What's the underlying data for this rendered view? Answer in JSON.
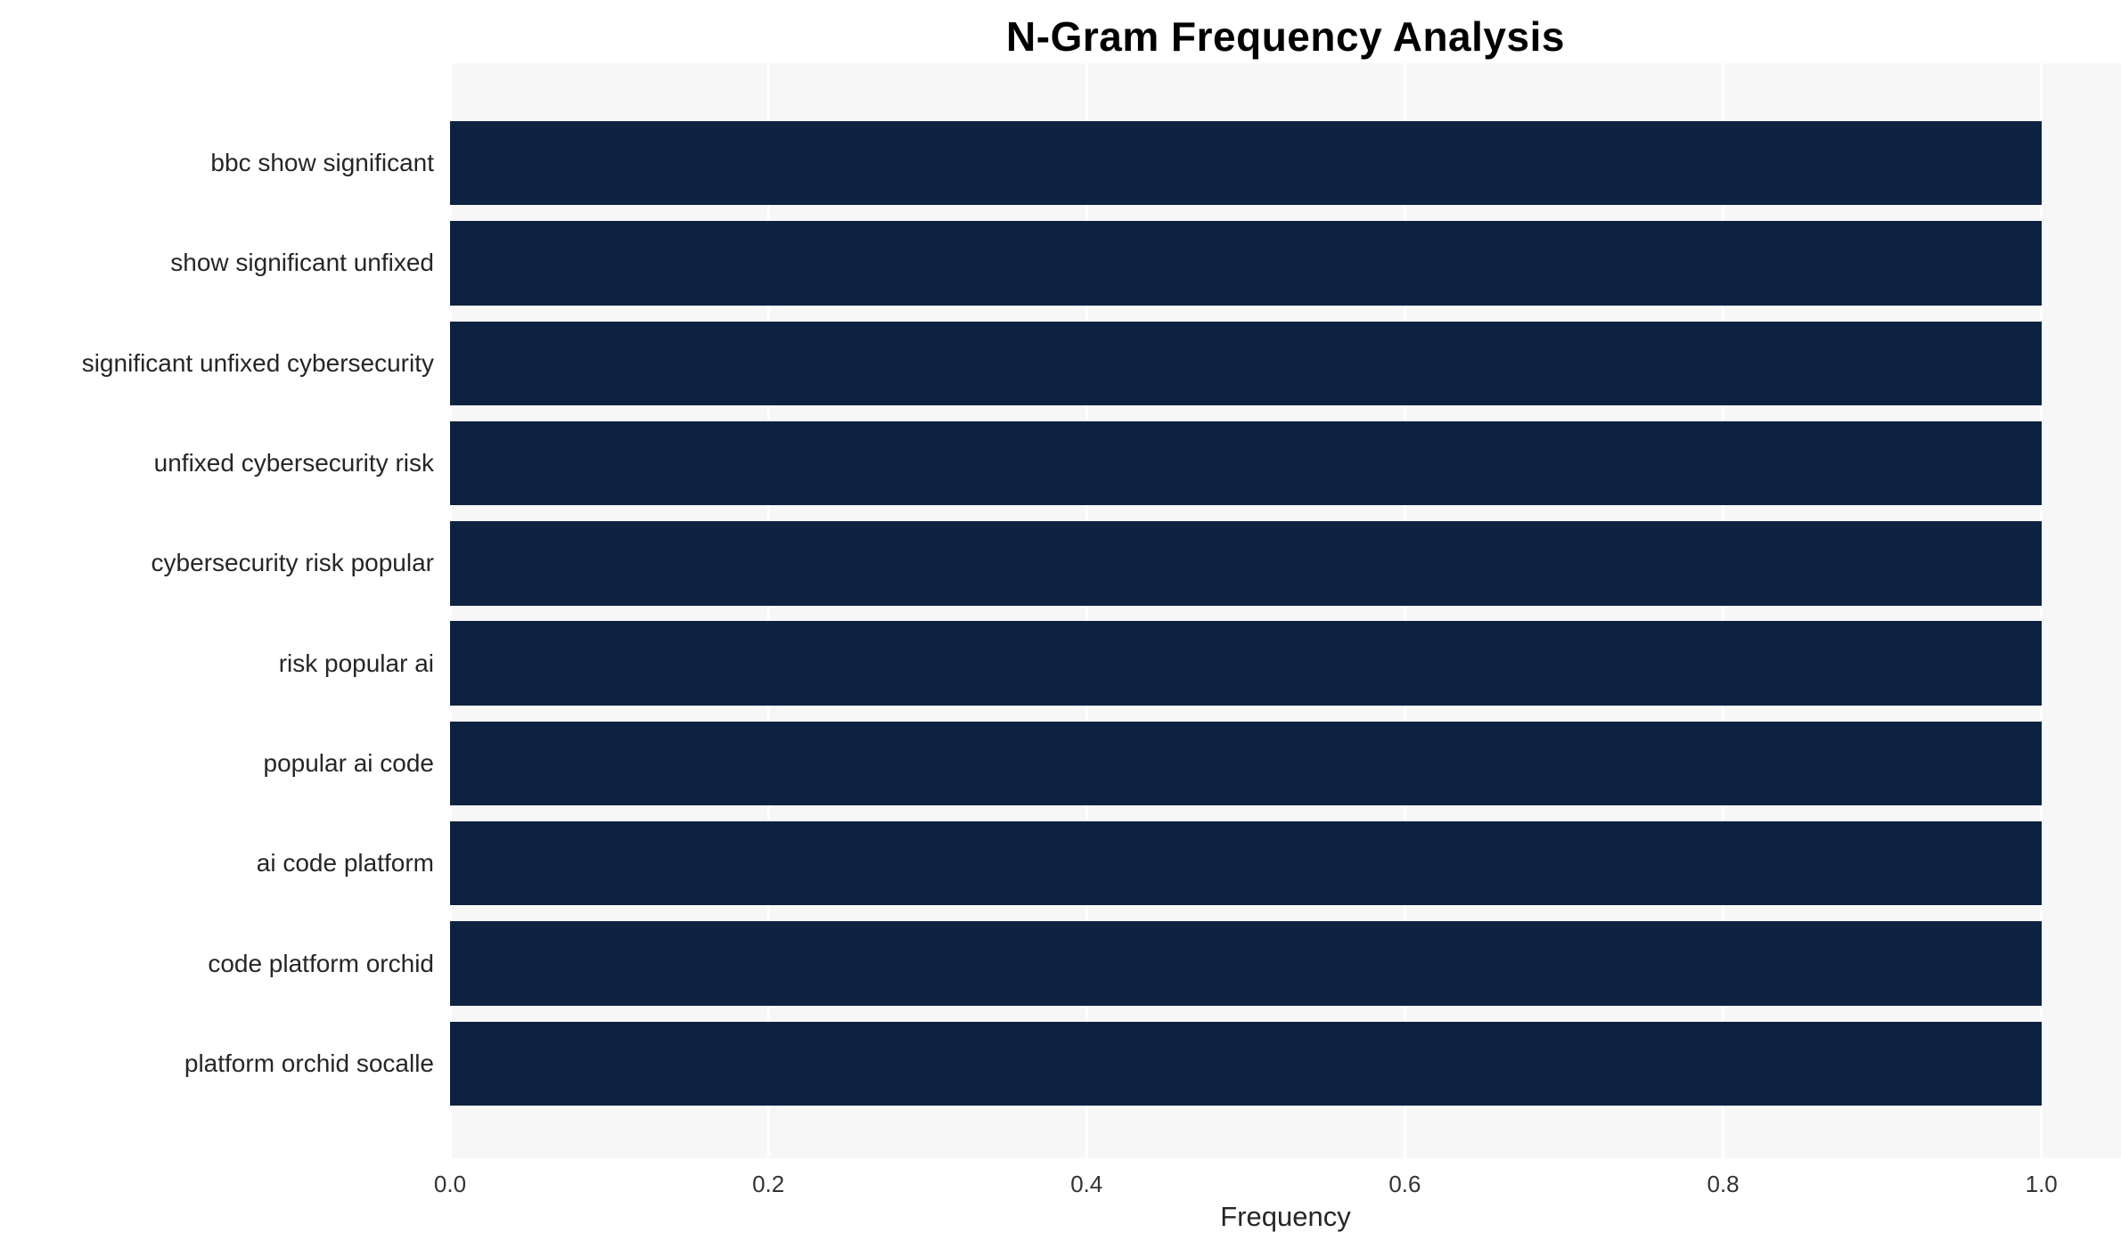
{
  "chart_data": {
    "type": "bar",
    "orientation": "horizontal",
    "title": "N-Gram Frequency Analysis",
    "xlabel": "Frequency",
    "ylabel": "",
    "categories": [
      "bbc show significant",
      "show significant unfixed",
      "significant unfixed cybersecurity",
      "unfixed cybersecurity risk",
      "cybersecurity risk popular",
      "risk popular ai",
      "popular ai code",
      "ai code platform",
      "code platform orchid",
      "platform orchid socalle"
    ],
    "values": [
      1.0,
      1.0,
      1.0,
      1.0,
      1.0,
      1.0,
      1.0,
      1.0,
      1.0,
      1.0
    ],
    "xticks": [
      0.0,
      0.2,
      0.4,
      0.6,
      0.8,
      1.0
    ],
    "xlim": [
      0.0,
      1.05
    ],
    "grid": true,
    "legend": false,
    "bar_color": "#0d2240",
    "plot_bg": "#f7f7f7"
  }
}
